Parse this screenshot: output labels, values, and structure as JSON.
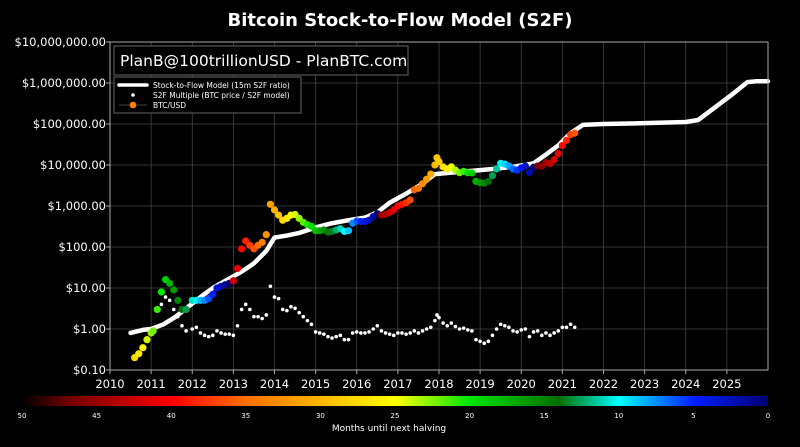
{
  "chart_data": {
    "type": "scatter",
    "title": "Bitcoin Stock-to-Flow Model (S2F)",
    "watermark": "PlanB@100trillionUSD - PlanBTC.com",
    "xlabel": "",
    "ylabel": "",
    "y_scale": "log",
    "xlim": [
      2010,
      2026
    ],
    "ylim": [
      0.1,
      10000000
    ],
    "grid": true,
    "legend_placement": "top-left",
    "x_ticks": [
      "2010",
      "2011",
      "2012",
      "2013",
      "2014",
      "2015",
      "2016",
      "2017",
      "2018",
      "2019",
      "2020",
      "2021",
      "2022",
      "2023",
      "2024",
      "2025"
    ],
    "y_ticks": [
      {
        "value": 10000000,
        "label": "$10,000,000.00"
      },
      {
        "value": 1000000,
        "label": "$1,000,000.00"
      },
      {
        "value": 100000,
        "label": "$100,000.00"
      },
      {
        "value": 10000,
        "label": "$10,000.00"
      },
      {
        "value": 1000,
        "label": "$1,000.00"
      },
      {
        "value": 100,
        "label": "$100.00"
      },
      {
        "value": 10,
        "label": "$10.00"
      },
      {
        "value": 1,
        "label": "$1.00"
      },
      {
        "value": 0.1,
        "label": "$0.10"
      }
    ],
    "legend": [
      {
        "label": "Stock-to-Flow Model (15m S2F ratio)",
        "marker": "thick-line",
        "color": "#ffffff"
      },
      {
        "label": "S2F Multiple (BTC price / S2F model)",
        "marker": "dot",
        "color": "#ffffff"
      },
      {
        "label": "BTC/USD",
        "marker": "dot-line",
        "color": "#ff8000"
      }
    ],
    "colorbar": {
      "label": "Months until next halving",
      "ticks": [
        "50",
        "45",
        "40",
        "35",
        "30",
        "25",
        "20",
        "15",
        "10",
        "5",
        "0"
      ],
      "range": [
        50,
        0
      ]
    },
    "halvings": [
      2012.91,
      2016.52,
      2020.36,
      2024.3
    ],
    "series": [
      {
        "name": "Stock-to-Flow Model (15m S2F ratio)",
        "type": "line",
        "points": [
          [
            2010.5,
            0.8
          ],
          [
            2010.8,
            0.95
          ],
          [
            2011.0,
            1.0
          ],
          [
            2011.3,
            1.3
          ],
          [
            2011.6,
            2
          ],
          [
            2011.9,
            3.5
          ],
          [
            2012.2,
            6
          ],
          [
            2012.5,
            10
          ],
          [
            2012.9,
            17
          ],
          [
            2013.2,
            25
          ],
          [
            2013.5,
            40
          ],
          [
            2013.8,
            80
          ],
          [
            2014.0,
            170
          ],
          [
            2014.3,
            190
          ],
          [
            2014.6,
            220
          ],
          [
            2015.0,
            300
          ],
          [
            2015.4,
            380
          ],
          [
            2015.8,
            450
          ],
          [
            2016.2,
            520
          ],
          [
            2016.5,
            700
          ],
          [
            2016.8,
            1200
          ],
          [
            2017.2,
            2000
          ],
          [
            2017.6,
            3500
          ],
          [
            2017.9,
            6000
          ],
          [
            2018.3,
            6500
          ],
          [
            2018.8,
            7200
          ],
          [
            2019.3,
            8000
          ],
          [
            2019.8,
            9000
          ],
          [
            2020.3,
            11000
          ],
          [
            2020.6,
            18000
          ],
          [
            2020.9,
            30000
          ],
          [
            2021.2,
            60000
          ],
          [
            2021.5,
            95000
          ],
          [
            2022.0,
            100000
          ],
          [
            2023.0,
            105000
          ],
          [
            2024.0,
            112000
          ],
          [
            2024.3,
            125000
          ],
          [
            2024.7,
            250000
          ],
          [
            2025.1,
            500000
          ],
          [
            2025.5,
            1050000
          ],
          [
            2025.7,
            1100000
          ],
          [
            2026.0,
            1100000
          ]
        ]
      },
      {
        "name": "BTC/USD",
        "type": "scatter",
        "points": [
          [
            2010.6,
            0.2
          ],
          [
            2010.7,
            0.25
          ],
          [
            2010.8,
            0.35
          ],
          [
            2010.9,
            0.55
          ],
          [
            2011.0,
            0.8
          ],
          [
            2011.05,
            0.9
          ],
          [
            2011.15,
            3
          ],
          [
            2011.25,
            8
          ],
          [
            2011.35,
            16
          ],
          [
            2011.45,
            13
          ],
          [
            2011.55,
            9
          ],
          [
            2011.65,
            5
          ],
          [
            2011.75,
            3
          ],
          [
            2011.85,
            3
          ],
          [
            2012.0,
            5
          ],
          [
            2012.1,
            5
          ],
          [
            2012.2,
            5
          ],
          [
            2012.3,
            5
          ],
          [
            2012.4,
            5.5
          ],
          [
            2012.5,
            7
          ],
          [
            2012.6,
            10
          ],
          [
            2012.7,
            11
          ],
          [
            2012.8,
            12
          ],
          [
            2012.9,
            13
          ],
          [
            2013.0,
            15
          ],
          [
            2013.1,
            30
          ],
          [
            2013.2,
            90
          ],
          [
            2013.3,
            140
          ],
          [
            2013.4,
            110
          ],
          [
            2013.5,
            90
          ],
          [
            2013.6,
            110
          ],
          [
            2013.7,
            130
          ],
          [
            2013.8,
            200
          ],
          [
            2013.9,
            1100
          ],
          [
            2014.0,
            800
          ],
          [
            2014.1,
            600
          ],
          [
            2014.2,
            450
          ],
          [
            2014.3,
            500
          ],
          [
            2014.4,
            600
          ],
          [
            2014.5,
            620
          ],
          [
            2014.6,
            500
          ],
          [
            2014.7,
            400
          ],
          [
            2014.8,
            350
          ],
          [
            2014.9,
            320
          ],
          [
            2015.0,
            250
          ],
          [
            2015.1,
            250
          ],
          [
            2015.2,
            260
          ],
          [
            2015.3,
            230
          ],
          [
            2015.4,
            240
          ],
          [
            2015.5,
            260
          ],
          [
            2015.6,
            280
          ],
          [
            2015.7,
            240
          ],
          [
            2015.8,
            250
          ],
          [
            2015.9,
            380
          ],
          [
            2016.0,
            430
          ],
          [
            2016.1,
            420
          ],
          [
            2016.2,
            420
          ],
          [
            2016.3,
            450
          ],
          [
            2016.4,
            550
          ],
          [
            2016.5,
            650
          ],
          [
            2016.6,
            600
          ],
          [
            2016.7,
            620
          ],
          [
            2016.8,
            700
          ],
          [
            2016.9,
            800
          ],
          [
            2017.0,
            1000
          ],
          [
            2017.1,
            1100
          ],
          [
            2017.2,
            1200
          ],
          [
            2017.3,
            1400
          ],
          [
            2017.4,
            2500
          ],
          [
            2017.5,
            2700
          ],
          [
            2017.6,
            3500
          ],
          [
            2017.7,
            4500
          ],
          [
            2017.8,
            6000
          ],
          [
            2017.9,
            10000
          ],
          [
            2017.95,
            15000
          ],
          [
            2018.0,
            12000
          ],
          [
            2018.1,
            9000
          ],
          [
            2018.2,
            8000
          ],
          [
            2018.3,
            9000
          ],
          [
            2018.4,
            7500
          ],
          [
            2018.5,
            6500
          ],
          [
            2018.6,
            7000
          ],
          [
            2018.7,
            6500
          ],
          [
            2018.8,
            6400
          ],
          [
            2018.9,
            4000
          ],
          [
            2019.0,
            3700
          ],
          [
            2019.1,
            3600
          ],
          [
            2019.2,
            4000
          ],
          [
            2019.3,
            5500
          ],
          [
            2019.4,
            8000
          ],
          [
            2019.5,
            11000
          ],
          [
            2019.6,
            10500
          ],
          [
            2019.7,
            9500
          ],
          [
            2019.8,
            8000
          ],
          [
            2019.9,
            7500
          ],
          [
            2020.0,
            8500
          ],
          [
            2020.1,
            9500
          ],
          [
            2020.2,
            6500
          ],
          [
            2020.3,
            8800
          ],
          [
            2020.4,
            9500
          ],
          [
            2020.5,
            9300
          ],
          [
            2020.6,
            11500
          ],
          [
            2020.7,
            10800
          ],
          [
            2020.8,
            13500
          ],
          [
            2020.9,
            19000
          ],
          [
            2021.0,
            30000
          ],
          [
            2021.1,
            40000
          ],
          [
            2021.2,
            55000
          ],
          [
            2021.3,
            60000
          ]
        ]
      },
      {
        "name": "S2F Multiple (BTC price / S2F model)",
        "type": "scatter",
        "points": [
          [
            2011.15,
            3
          ],
          [
            2011.25,
            4
          ],
          [
            2011.35,
            6
          ],
          [
            2011.45,
            5
          ],
          [
            2011.55,
            3
          ],
          [
            2011.65,
            2
          ],
          [
            2011.75,
            1.2
          ],
          [
            2011.85,
            0.9
          ],
          [
            2012.0,
            1.0
          ],
          [
            2012.1,
            1.1
          ],
          [
            2012.2,
            0.8
          ],
          [
            2012.3,
            0.7
          ],
          [
            2012.4,
            0.65
          ],
          [
            2012.5,
            0.7
          ],
          [
            2012.6,
            0.9
          ],
          [
            2012.7,
            0.8
          ],
          [
            2012.8,
            0.75
          ],
          [
            2012.9,
            0.75
          ],
          [
            2013.0,
            0.7
          ],
          [
            2013.1,
            1.2
          ],
          [
            2013.2,
            3
          ],
          [
            2013.3,
            4
          ],
          [
            2013.4,
            3
          ],
          [
            2013.5,
            2
          ],
          [
            2013.6,
            2
          ],
          [
            2013.7,
            1.8
          ],
          [
            2013.8,
            2.2
          ],
          [
            2013.9,
            11
          ],
          [
            2014.0,
            6
          ],
          [
            2014.1,
            5.5
          ],
          [
            2014.2,
            3
          ],
          [
            2014.3,
            2.8
          ],
          [
            2014.4,
            3.5
          ],
          [
            2014.5,
            3.2
          ],
          [
            2014.6,
            2.5
          ],
          [
            2014.7,
            2
          ],
          [
            2014.8,
            1.6
          ],
          [
            2014.9,
            1.3
          ],
          [
            2015.0,
            0.85
          ],
          [
            2015.1,
            0.8
          ],
          [
            2015.2,
            0.75
          ],
          [
            2015.3,
            0.65
          ],
          [
            2015.4,
            0.6
          ],
          [
            2015.5,
            0.65
          ],
          [
            2015.6,
            0.7
          ],
          [
            2015.7,
            0.55
          ],
          [
            2015.8,
            0.55
          ],
          [
            2015.9,
            0.8
          ],
          [
            2016.0,
            0.85
          ],
          [
            2016.1,
            0.8
          ],
          [
            2016.2,
            0.8
          ],
          [
            2016.3,
            0.85
          ],
          [
            2016.4,
            1.0
          ],
          [
            2016.5,
            1.2
          ],
          [
            2016.6,
            0.9
          ],
          [
            2016.7,
            0.8
          ],
          [
            2016.8,
            0.75
          ],
          [
            2016.9,
            0.7
          ],
          [
            2017.0,
            0.8
          ],
          [
            2017.1,
            0.8
          ],
          [
            2017.2,
            0.75
          ],
          [
            2017.3,
            0.8
          ],
          [
            2017.4,
            0.9
          ],
          [
            2017.5,
            0.8
          ],
          [
            2017.6,
            0.9
          ],
          [
            2017.7,
            1.0
          ],
          [
            2017.8,
            1.1
          ],
          [
            2017.9,
            1.6
          ],
          [
            2017.95,
            2.2
          ],
          [
            2018.0,
            1.9
          ],
          [
            2018.1,
            1.4
          ],
          [
            2018.2,
            1.2
          ],
          [
            2018.3,
            1.4
          ],
          [
            2018.4,
            1.15
          ],
          [
            2018.5,
            1.0
          ],
          [
            2018.6,
            1.05
          ],
          [
            2018.7,
            0.95
          ],
          [
            2018.8,
            0.9
          ],
          [
            2018.9,
            0.55
          ],
          [
            2019.0,
            0.5
          ],
          [
            2019.1,
            0.45
          ],
          [
            2019.2,
            0.5
          ],
          [
            2019.3,
            0.7
          ],
          [
            2019.4,
            1.0
          ],
          [
            2019.5,
            1.3
          ],
          [
            2019.6,
            1.2
          ],
          [
            2019.7,
            1.1
          ],
          [
            2019.8,
            0.9
          ],
          [
            2019.9,
            0.85
          ],
          [
            2020.0,
            0.95
          ],
          [
            2020.1,
            1.0
          ],
          [
            2020.2,
            0.65
          ],
          [
            2020.3,
            0.85
          ],
          [
            2020.4,
            0.9
          ],
          [
            2020.5,
            0.7
          ],
          [
            2020.6,
            0.8
          ],
          [
            2020.7,
            0.7
          ],
          [
            2020.8,
            0.8
          ],
          [
            2020.9,
            0.9
          ],
          [
            2021.0,
            1.1
          ],
          [
            2021.1,
            1.1
          ],
          [
            2021.2,
            1.3
          ],
          [
            2021.3,
            1.1
          ]
        ]
      }
    ]
  }
}
